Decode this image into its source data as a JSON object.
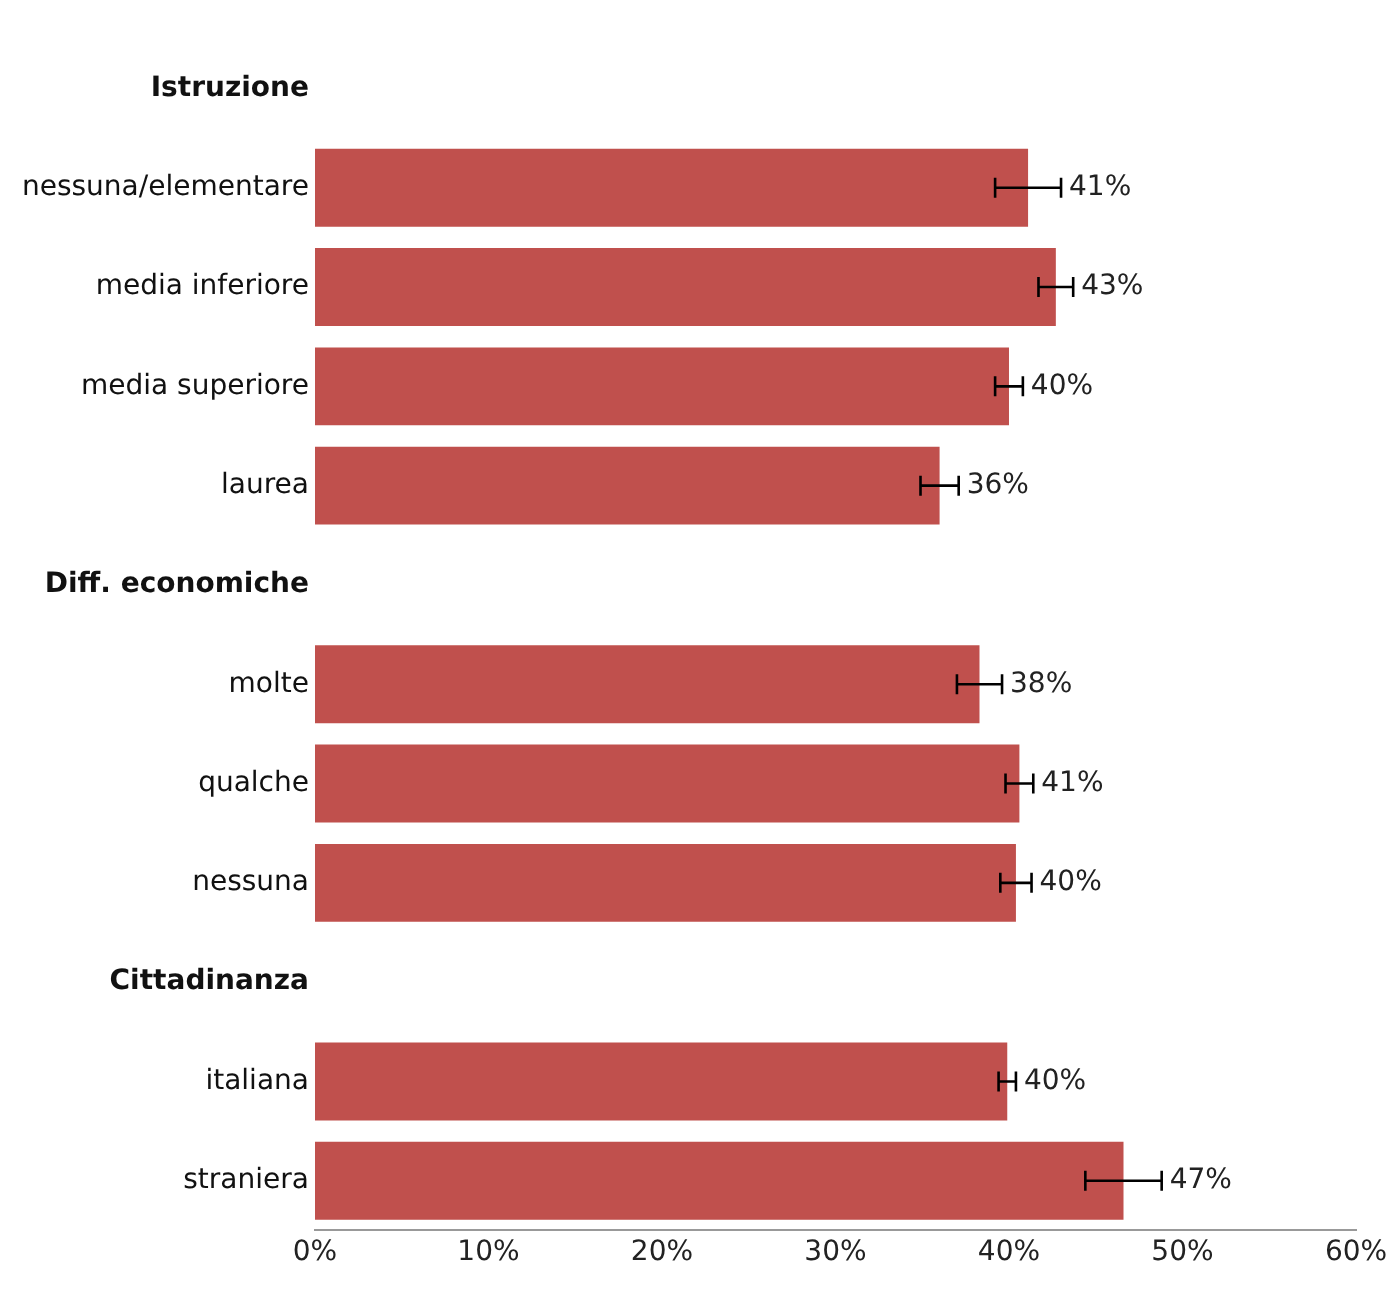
{
  "chart_data": {
    "type": "bar",
    "orientation": "horizontal",
    "categories": [
      "Istruzione",
      "nessuna/elementare",
      "media inferiore",
      "media superiore",
      "laurea",
      "Diff. economiche",
      "molte",
      "qualche",
      "nessuna",
      "Cittadinanza",
      "italiana",
      "straniera"
    ],
    "values": [
      null,
      41.1,
      42.7,
      40.0,
      36.0,
      null,
      38.3,
      40.6,
      40.4,
      null,
      39.9,
      46.6
    ],
    "errors": [
      null,
      1.9,
      1.0,
      0.8,
      1.1,
      null,
      1.3,
      0.8,
      0.9,
      null,
      0.5,
      2.2
    ],
    "value_labels": [
      null,
      "41%",
      "43%",
      "40%",
      "36%",
      null,
      "38%",
      "41%",
      "40%",
      null,
      "40%",
      "47%"
    ],
    "color": "#c0504d",
    "xlim": [
      0,
      60
    ],
    "xticks": [
      {
        "value": 0,
        "label": "0%"
      },
      {
        "value": 10,
        "label": "10%"
      },
      {
        "value": 20,
        "label": "20%"
      },
      {
        "value": 30,
        "label": "30%"
      },
      {
        "value": 40,
        "label": "40%"
      },
      {
        "value": 50,
        "label": "50%"
      },
      {
        "value": 60,
        "label": "60%"
      }
    ],
    "grid": false,
    "legend": false
  }
}
